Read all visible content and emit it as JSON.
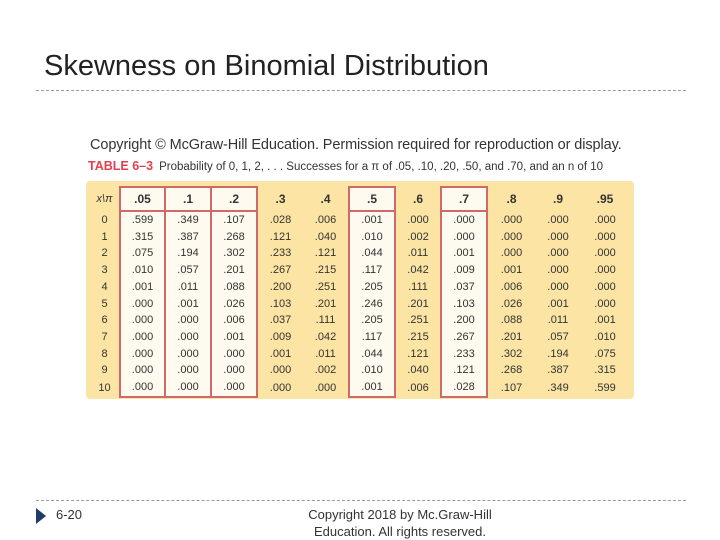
{
  "slide": {
    "title": "Skewness on Binomial Distribution",
    "image_copyright": "Copyright © McGraw-Hill Education. Permission required for reproduction or display.",
    "table_label": "TABLE 6–3",
    "table_caption": "Probability of 0, 1, 2, . . . Successes for a π of .05, .10, .20, .50, and .70, and an n of 10",
    "page_number": "6-20",
    "footer_copyright": "Copyright  2018 by Mc.Graw-Hill Education.  All rights reserved.",
    "colors": {
      "table_background": "#fbe4a4",
      "highlight_border": "#d06a6a",
      "label_red": "#e2404e",
      "footer_arrow": "#1f3c64"
    }
  },
  "table": {
    "corner_header": "x\\π",
    "columns": [
      ".05",
      ".1",
      ".2",
      ".3",
      ".4",
      ".5",
      ".6",
      ".7",
      ".8",
      ".9",
      ".95"
    ],
    "highlighted_columns": [
      0,
      1,
      2,
      5,
      7
    ],
    "rows": [
      {
        "x": "0",
        "values": [
          ".599",
          ".349",
          ".107",
          ".028",
          ".006",
          ".001",
          ".000",
          ".000",
          ".000",
          ".000",
          ".000"
        ]
      },
      {
        "x": "1",
        "values": [
          ".315",
          ".387",
          ".268",
          ".121",
          ".040",
          ".010",
          ".002",
          ".000",
          ".000",
          ".000",
          ".000"
        ]
      },
      {
        "x": "2",
        "values": [
          ".075",
          ".194",
          ".302",
          ".233",
          ".121",
          ".044",
          ".011",
          ".001",
          ".000",
          ".000",
          ".000"
        ]
      },
      {
        "x": "3",
        "values": [
          ".010",
          ".057",
          ".201",
          ".267",
          ".215",
          ".117",
          ".042",
          ".009",
          ".001",
          ".000",
          ".000"
        ]
      },
      {
        "x": "4",
        "values": [
          ".001",
          ".011",
          ".088",
          ".200",
          ".251",
          ".205",
          ".111",
          ".037",
          ".006",
          ".000",
          ".000"
        ]
      },
      {
        "x": "5",
        "values": [
          ".000",
          ".001",
          ".026",
          ".103",
          ".201",
          ".246",
          ".201",
          ".103",
          ".026",
          ".001",
          ".000"
        ]
      },
      {
        "x": "6",
        "values": [
          ".000",
          ".000",
          ".006",
          ".037",
          ".111",
          ".205",
          ".251",
          ".200",
          ".088",
          ".011",
          ".001"
        ]
      },
      {
        "x": "7",
        "values": [
          ".000",
          ".000",
          ".001",
          ".009",
          ".042",
          ".117",
          ".215",
          ".267",
          ".201",
          ".057",
          ".010"
        ]
      },
      {
        "x": "8",
        "values": [
          ".000",
          ".000",
          ".000",
          ".001",
          ".011",
          ".044",
          ".121",
          ".233",
          ".302",
          ".194",
          ".075"
        ]
      },
      {
        "x": "9",
        "values": [
          ".000",
          ".000",
          ".000",
          ".000",
          ".002",
          ".010",
          ".040",
          ".121",
          ".268",
          ".387",
          ".315"
        ]
      },
      {
        "x": "10",
        "values": [
          ".000",
          ".000",
          ".000",
          ".000",
          ".000",
          ".001",
          ".006",
          ".028",
          ".107",
          ".349",
          ".599"
        ]
      }
    ]
  }
}
